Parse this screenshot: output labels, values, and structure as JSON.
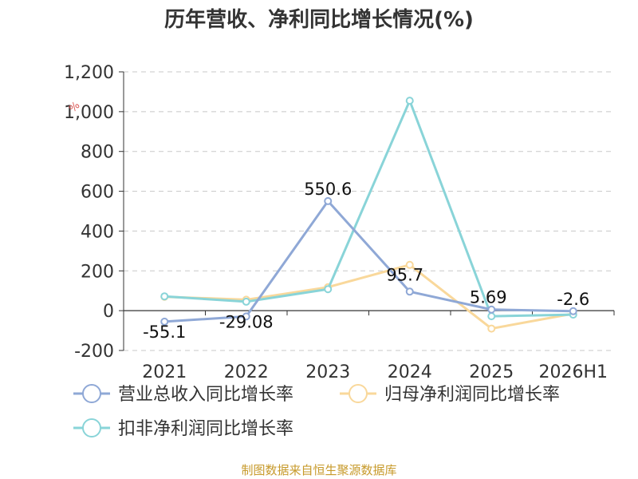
{
  "title": "历年营收、净利同比增长情况(%)",
  "unit_label": "%",
  "source": "制图数据来自恒生聚源数据库",
  "chart_data": {
    "type": "line",
    "categories": [
      "2021",
      "2022",
      "2023",
      "2024",
      "2025",
      "2026H1"
    ],
    "ylim": [
      -200,
      1200
    ],
    "yticks": [
      -200,
      0,
      200,
      400,
      600,
      800,
      1000,
      1200
    ],
    "ytick_labels": [
      "-200",
      "0",
      "200",
      "400",
      "600",
      "800",
      "1,000",
      "1,200"
    ],
    "grid": true,
    "legend_position": "bottom",
    "series": [
      {
        "name": "营业总收入同比增长率",
        "color": "#8fa8d6",
        "values": [
          -55.1,
          -29.08,
          550.6,
          95.7,
          5.69,
          -2.6
        ],
        "labels": [
          "-55.1",
          "-29.08",
          "550.6",
          "95.7",
          "5.69",
          "-2.6"
        ]
      },
      {
        "name": "归母净利润同比增长率",
        "color": "#f9d89b",
        "values": [
          70,
          55,
          118,
          230,
          -90,
          -15
        ],
        "labels": []
      },
      {
        "name": "扣非净利润同比增长率",
        "color": "#89d4d8",
        "values": [
          72,
          45,
          108,
          1055,
          -28,
          -20
        ],
        "labels": []
      }
    ]
  }
}
